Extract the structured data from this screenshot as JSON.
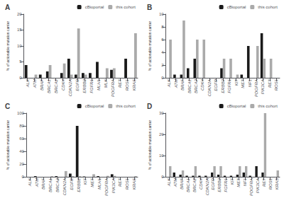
{
  "chart_data": [
    {
      "type": "bar",
      "title": "A",
      "ylabel": "% of actionable mutation carrier",
      "categories": [
        "ALK",
        "ATM",
        "BRAF",
        "BRCA1",
        "BRCA2",
        "CDK4",
        "CDKN2A",
        "EGFR",
        "ERBB2",
        "FGFR1",
        "MLH1",
        "MLK",
        "PDGFRA",
        "RET",
        "ROS1",
        "KRAS"
      ],
      "series": [
        {
          "name": "cBioportal",
          "color": "#1a1a1a",
          "values": [
            4.0,
            0.0,
            1.0,
            2.0,
            0.0,
            1.5,
            6.0,
            1.0,
            1.5,
            1.5,
            5.0,
            0.0,
            2.5,
            0.0,
            6.0,
            0.0
          ]
        },
        {
          "name": "this cohort",
          "color": "#aaaaaa",
          "values": [
            0.0,
            1.0,
            0.0,
            4.0,
            0.0,
            4.5,
            1.0,
            15.5,
            1.0,
            0.0,
            0.0,
            3.0,
            3.0,
            0.0,
            0.0,
            14.0
          ]
        }
      ],
      "ylim": [
        0,
        20
      ],
      "yticks": [
        0,
        5,
        10,
        15,
        20
      ],
      "legend": "upper right",
      "grid": false
    },
    {
      "type": "bar",
      "title": "B",
      "ylabel": "% of actionable mutation carrier",
      "categories": [
        "ALK",
        "ATM",
        "BRAF",
        "BRCA1",
        "BRCA2",
        "CDK4",
        "CDKN2A",
        "EGFR",
        "ERBB2",
        "FGFR1",
        "KIT",
        "MET",
        "NF1",
        "PDGFRA",
        "PIK3CA",
        "RET",
        "ROS1"
      ],
      "series": [
        {
          "name": "cBioportal",
          "color": "#1a1a1a",
          "values": [
            0.0,
            0.5,
            0.5,
            1.5,
            3.0,
            0.0,
            0.0,
            0.0,
            1.5,
            0.0,
            0.0,
            0.5,
            5.0,
            0.0,
            7.0,
            0.0,
            0.0
          ]
        },
        {
          "name": "this cohort",
          "color": "#aaaaaa",
          "values": [
            6.0,
            0.0,
            9.0,
            0.0,
            6.0,
            6.0,
            0.0,
            0.0,
            3.0,
            3.0,
            0.5,
            0.0,
            0.0,
            5.0,
            3.0,
            3.0,
            0.0
          ]
        }
      ],
      "ylim": [
        0,
        10
      ],
      "yticks": [
        0,
        2,
        4,
        6,
        8,
        10
      ],
      "legend": "upper right",
      "grid": false
    },
    {
      "type": "bar",
      "title": "C",
      "ylabel": "% of actionable mutation carrier",
      "categories": [
        "ALK",
        "ATM",
        "BRAF",
        "BRCA1",
        "BRCA2",
        "CDKN2A",
        "EGFR",
        "ERBB2",
        "KIT",
        "MET",
        "MLH1",
        "PDGFRA",
        "PIK3CA",
        "RET",
        "ROS1",
        "KRAS"
      ],
      "series": [
        {
          "name": "cBioportal",
          "color": "#1a1a1a",
          "values": [
            0.0,
            1.0,
            0.0,
            0.0,
            1.0,
            0.0,
            5.0,
            80.0,
            0.5,
            0.0,
            1.0,
            0.0,
            4.0,
            0.0,
            0.0,
            0.0
          ]
        },
        {
          "name": "this cohort",
          "color": "#aaaaaa",
          "values": [
            0.0,
            0.0,
            0.0,
            1.0,
            0.0,
            9.0,
            1.0,
            1.0,
            0.0,
            4.0,
            0.0,
            1.5,
            1.5,
            0.0,
            0.0,
            1.0
          ]
        }
      ],
      "ylim": [
        0,
        100
      ],
      "yticks": [
        0,
        20,
        40,
        60,
        80,
        100
      ],
      "legend": "upper right",
      "grid": false
    },
    {
      "type": "bar",
      "title": "D",
      "ylabel": "% of actionable mutation carrier",
      "categories": [
        "ALK",
        "ATM",
        "BRAF",
        "BRCA1",
        "BRCA2",
        "CDK4",
        "CDKN2A",
        "EGFR",
        "ERBB2",
        "FGFR1",
        "KIT",
        "MET",
        "NF1",
        "PDGFRA",
        "PIK3CA",
        "RET",
        "ROS1",
        "KRAS"
      ],
      "series": [
        {
          "name": "cBioportal",
          "color": "#1a1a1a",
          "values": [
            0.0,
            2.0,
            1.0,
            0.5,
            0.5,
            0.5,
            0.5,
            2.0,
            1.0,
            0.5,
            0.5,
            1.0,
            2.0,
            0.5,
            5.0,
            2.0,
            0.0,
            0.0
          ]
        },
        {
          "name": "this cohort",
          "color": "#aaaaaa",
          "values": [
            5.0,
            0.0,
            3.0,
            0.0,
            5.0,
            0.0,
            0.0,
            5.0,
            5.0,
            0.0,
            0.0,
            5.0,
            5.0,
            0.0,
            0.0,
            30.0,
            0.0,
            3.0
          ]
        }
      ],
      "ylim": [
        0,
        30
      ],
      "yticks": [
        0,
        10,
        20,
        30
      ],
      "legend": "upper right",
      "grid": false
    }
  ]
}
